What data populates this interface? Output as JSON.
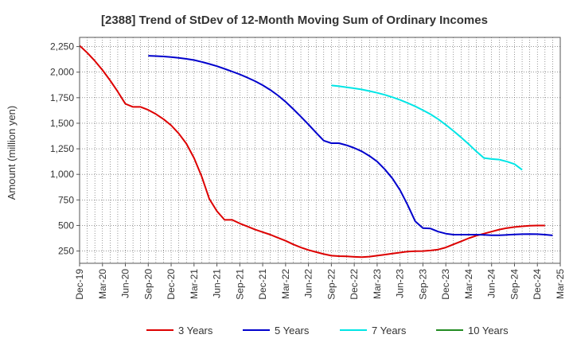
{
  "chart_data": {
    "type": "line",
    "title": "[2388]  Trend of StDev of 12-Month Moving Sum of Ordinary Incomes",
    "xlabel": "",
    "ylabel": "Amount (million yen)",
    "x_tick_labels": [
      "Dec-19",
      "Mar-20",
      "Jun-20",
      "Sep-20",
      "Dec-20",
      "Mar-21",
      "Jun-21",
      "Sep-21",
      "Dec-21",
      "Mar-22",
      "Jun-22",
      "Sep-22",
      "Dec-22",
      "Mar-23",
      "Jun-23",
      "Sep-23",
      "Dec-23",
      "Mar-24",
      "Jun-24",
      "Sep-24",
      "Dec-24",
      "Mar-25"
    ],
    "y_ticks": [
      250,
      500,
      750,
      1000,
      1250,
      1500,
      1750,
      2000,
      2250
    ],
    "y_tick_labels": [
      "250",
      "500",
      "750",
      "1,000",
      "1,250",
      "1,500",
      "1,750",
      "2,000",
      "2,250"
    ],
    "ylim": [
      130,
      2340
    ],
    "grid": true,
    "legend_position": "bottom",
    "series": [
      {
        "name": "3 Years",
        "color": "#dd0000",
        "start": "Dec-19",
        "values": [
          2260,
          2190,
          2110,
          2020,
          1920,
          1810,
          1690,
          1660,
          1660,
          1630,
          1590,
          1540,
          1480,
          1400,
          1300,
          1160,
          980,
          760,
          640,
          555,
          555,
          520,
          490,
          460,
          435,
          410,
          380,
          350,
          315,
          285,
          260,
          240,
          220,
          205,
          200,
          198,
          193,
          190,
          195,
          205,
          215,
          225,
          235,
          245,
          248,
          250,
          255,
          265,
          285,
          315,
          345,
          375,
          400,
          420,
          440,
          460,
          475,
          485,
          492,
          498,
          500,
          500
        ]
      },
      {
        "name": "5 Years",
        "color": "#0000cc",
        "start": "Sep-20",
        "values": [
          2160,
          2157,
          2153,
          2148,
          2140,
          2130,
          2118,
          2100,
          2080,
          2058,
          2033,
          2006,
          1978,
          1946,
          1912,
          1872,
          1826,
          1772,
          1710,
          1640,
          1565,
          1488,
          1408,
          1330,
          1305,
          1305,
          1285,
          1258,
          1225,
          1180,
          1125,
          1050,
          960,
          845,
          700,
          540,
          475,
          470,
          440,
          420,
          410,
          410,
          410,
          410,
          408,
          405,
          405,
          408,
          412,
          415,
          416,
          415,
          410,
          403
        ]
      },
      {
        "name": "7 Years",
        "color": "#00e5e5",
        "start": "Sep-22",
        "values": [
          1870,
          1862,
          1852,
          1842,
          1830,
          1815,
          1798,
          1778,
          1755,
          1728,
          1698,
          1665,
          1628,
          1588,
          1540,
          1485,
          1425,
          1362,
          1295,
          1225,
          1160,
          1150,
          1145,
          1125,
          1100,
          1045
        ]
      },
      {
        "name": "10 Years",
        "color": "#228b22",
        "start": "",
        "values": []
      }
    ]
  }
}
